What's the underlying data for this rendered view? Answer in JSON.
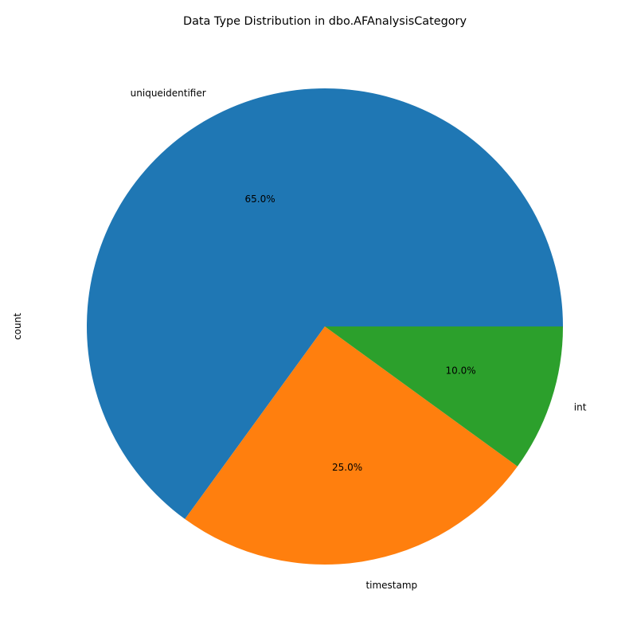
{
  "chart_data": {
    "type": "pie",
    "title": "Data Type Distribution in dbo.AFAnalysisCategory",
    "ylabel": "count",
    "slices": [
      {
        "label": "uniqueidentifier",
        "percent": 65.0,
        "pct_label": "65.0%",
        "color": "#1f77b4"
      },
      {
        "label": "timestamp",
        "percent": 25.0,
        "pct_label": "25.0%",
        "color": "#ff7f0e"
      },
      {
        "label": "int",
        "percent": 10.0,
        "pct_label": "10.0%",
        "color": "#2ca02c"
      }
    ],
    "start_angle_deg": 0,
    "direction": "counterclockwise"
  }
}
